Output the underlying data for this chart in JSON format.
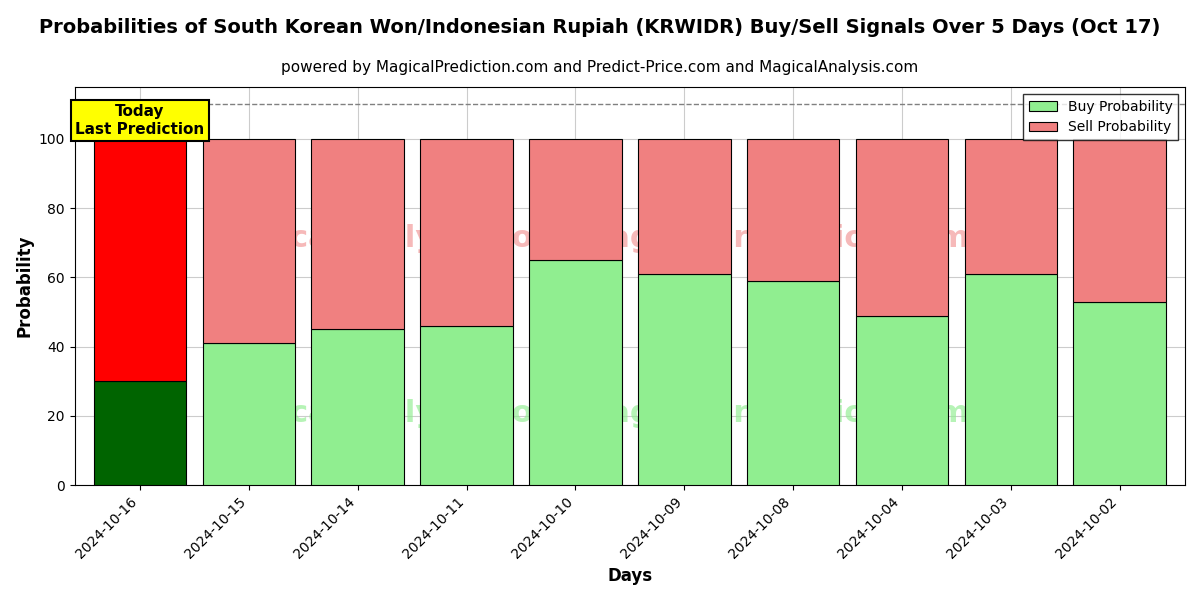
{
  "title": "Probabilities of South Korean Won/Indonesian Rupiah (KRWIDR) Buy/Sell Signals Over 5 Days (Oct 17)",
  "subtitle": "powered by MagicalPrediction.com and Predict-Price.com and MagicalAnalysis.com",
  "xlabel": "Days",
  "ylabel": "Probability",
  "categories": [
    "2024-10-16",
    "2024-10-15",
    "2024-10-14",
    "2024-10-11",
    "2024-10-10",
    "2024-10-09",
    "2024-10-08",
    "2024-10-04",
    "2024-10-03",
    "2024-10-02"
  ],
  "buy_values": [
    30,
    41,
    45,
    46,
    65,
    61,
    59,
    49,
    61,
    53
  ],
  "sell_values": [
    70,
    59,
    55,
    54,
    35,
    39,
    41,
    51,
    39,
    47
  ],
  "buy_colors": [
    "#006400",
    "#90EE90",
    "#90EE90",
    "#90EE90",
    "#90EE90",
    "#90EE90",
    "#90EE90",
    "#90EE90",
    "#90EE90",
    "#90EE90"
  ],
  "sell_colors": [
    "#FF0000",
    "#F08080",
    "#F08080",
    "#F08080",
    "#F08080",
    "#F08080",
    "#F08080",
    "#F08080",
    "#F08080",
    "#F08080"
  ],
  "legend_buy_color": "#90EE90",
  "legend_sell_color": "#F08080",
  "today_label": "Today\nLast Prediction",
  "today_bg": "#FFFF00",
  "ylim": [
    0,
    115
  ],
  "yticks": [
    0,
    20,
    40,
    60,
    80,
    100
  ],
  "dashed_line_y": 110,
  "background_color": "#ffffff",
  "grid_color": "#cccccc",
  "title_fontsize": 14,
  "subtitle_fontsize": 11,
  "bar_width": 0.85
}
